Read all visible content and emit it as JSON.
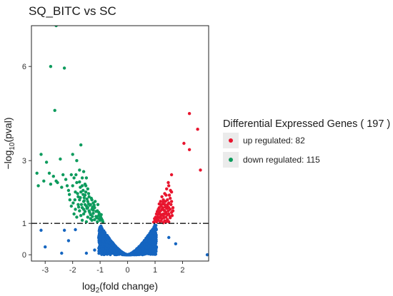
{
  "chart_data": {
    "type": "scatter",
    "title": "SQ_BITC vs SC",
    "xlabel": "log2(fold change)",
    "ylabel": "-log10(pval)",
    "xlim": [
      -3.5,
      2.95
    ],
    "ylim": [
      -0.2,
      7.3
    ],
    "xticks": [
      -3,
      -2,
      -1,
      0,
      1,
      2
    ],
    "yticks": [
      0,
      1,
      3,
      6
    ],
    "threshold_line": {
      "y": 1.0,
      "style": "dashdot"
    },
    "grid": false,
    "legend_position": "right",
    "legend_title": "Differential Expressed Genes ( 197 )",
    "series": [
      {
        "name": "up regulated: 82",
        "color": "#e8152e",
        "points": [
          [
            2.25,
            4.5
          ],
          [
            2.55,
            4.0
          ],
          [
            2.05,
            3.55
          ],
          [
            2.25,
            3.35
          ],
          [
            2.65,
            2.7
          ],
          [
            1.6,
            2.55
          ],
          [
            1.5,
            2.2
          ],
          [
            1.6,
            2.0
          ],
          [
            1.4,
            1.9
          ],
          [
            1.3,
            1.75
          ],
          [
            1.5,
            1.65
          ],
          [
            1.2,
            1.6
          ],
          [
            1.45,
            1.55
          ],
          [
            1.55,
            1.45
          ],
          [
            1.6,
            1.35
          ],
          [
            1.35,
            1.4
          ],
          [
            1.25,
            1.45
          ],
          [
            1.15,
            1.35
          ],
          [
            1.1,
            1.28
          ],
          [
            1.05,
            1.18
          ],
          [
            1.12,
            1.1
          ],
          [
            1.2,
            1.22
          ],
          [
            1.3,
            1.3
          ],
          [
            1.4,
            1.2
          ],
          [
            1.5,
            1.3
          ],
          [
            1.45,
            1.12
          ],
          [
            1.35,
            1.08
          ],
          [
            1.25,
            1.15
          ],
          [
            1.18,
            1.05
          ],
          [
            1.3,
            1.02
          ],
          [
            1.5,
            1.05
          ],
          [
            1.55,
            1.18
          ],
          [
            1.4,
            1.35
          ],
          [
            1.0,
            1.1
          ],
          [
            0.95,
            1.04
          ],
          [
            1.05,
            1.3
          ],
          [
            1.15,
            1.5
          ],
          [
            1.35,
            1.6
          ],
          [
            1.45,
            1.75
          ],
          [
            1.25,
            1.85
          ],
          [
            1.65,
            1.5
          ],
          [
            1.3,
            1.25
          ],
          [
            1.2,
            1.4
          ],
          [
            1.1,
            1.2
          ],
          [
            1.05,
            1.05
          ],
          [
            1.42,
            1.48
          ],
          [
            1.22,
            1.08
          ],
          [
            1.32,
            1.18
          ],
          [
            1.58,
            1.6
          ],
          [
            1.62,
            1.25
          ],
          [
            1.48,
            1.4
          ],
          [
            1.38,
            1.52
          ],
          [
            1.28,
            1.62
          ],
          [
            1.18,
            1.3
          ],
          [
            1.08,
            1.12
          ],
          [
            1.52,
            1.9
          ],
          [
            1.42,
            2.1
          ],
          [
            1.35,
            1.95
          ],
          [
            1.55,
            1.8
          ],
          [
            1.48,
            2.3
          ],
          [
            1.45,
            1.28
          ],
          [
            1.12,
            1.45
          ],
          [
            1.02,
            1.2
          ],
          [
            0.98,
            1.15
          ],
          [
            1.2,
            1.7
          ],
          [
            1.6,
            1.7
          ],
          [
            1.65,
            1.4
          ],
          [
            1.28,
            1.5
          ],
          [
            1.35,
            1.3
          ],
          [
            1.38,
            1.7
          ],
          [
            1.18,
            1.18
          ],
          [
            1.25,
            1.28
          ],
          [
            1.22,
            1.55
          ],
          [
            1.5,
            1.5
          ],
          [
            1.32,
            1.42
          ],
          [
            1.46,
            1.6
          ],
          [
            1.4,
            1.05
          ],
          [
            1.54,
            1.22
          ],
          [
            1.15,
            1.62
          ],
          [
            1.08,
            1.38
          ],
          [
            1.3,
            1.68
          ],
          [
            1.56,
            2.05
          ]
        ]
      },
      {
        "name": "down regulated: 115",
        "color": "#0d9b5d",
        "points": [
          [
            -2.6,
            7.3
          ],
          [
            -2.8,
            6.0
          ],
          [
            -2.3,
            5.95
          ],
          [
            -2.65,
            4.6
          ],
          [
            -1.7,
            3.5
          ],
          [
            -2.0,
            3.2
          ],
          [
            -2.45,
            3.05
          ],
          [
            -3.15,
            3.2
          ],
          [
            -2.95,
            2.95
          ],
          [
            -1.85,
            3.0
          ],
          [
            -3.3,
            2.6
          ],
          [
            -2.7,
            2.5
          ],
          [
            -2.35,
            2.55
          ],
          [
            -2.05,
            2.55
          ],
          [
            -1.95,
            2.45
          ],
          [
            -1.75,
            2.7
          ],
          [
            -1.6,
            2.65
          ],
          [
            -3.05,
            2.35
          ],
          [
            -2.8,
            2.25
          ],
          [
            -2.55,
            2.3
          ],
          [
            -3.25,
            2.2
          ],
          [
            -2.4,
            2.15
          ],
          [
            -2.2,
            2.2
          ],
          [
            -2.15,
            2.05
          ],
          [
            -2.0,
            2.2
          ],
          [
            -1.85,
            2.3
          ],
          [
            -1.5,
            2.45
          ],
          [
            -1.55,
            2.25
          ],
          [
            -1.65,
            2.2
          ],
          [
            -1.45,
            2.1
          ],
          [
            -1.7,
            2.0
          ],
          [
            -1.9,
            2.0
          ],
          [
            -1.55,
            1.9
          ],
          [
            -1.4,
            1.85
          ],
          [
            -1.3,
            1.75
          ],
          [
            -1.6,
            1.7
          ],
          [
            -1.45,
            1.7
          ],
          [
            -1.75,
            1.75
          ],
          [
            -1.25,
            1.65
          ],
          [
            -1.35,
            1.6
          ],
          [
            -1.5,
            1.55
          ],
          [
            -1.2,
            1.5
          ],
          [
            -1.65,
            1.5
          ],
          [
            -1.3,
            1.45
          ],
          [
            -1.8,
            1.6
          ],
          [
            -1.1,
            1.4
          ],
          [
            -1.4,
            1.4
          ],
          [
            -1.55,
            1.38
          ],
          [
            -1.25,
            1.32
          ],
          [
            -1.05,
            1.25
          ],
          [
            -1.15,
            1.22
          ],
          [
            -1.35,
            1.28
          ],
          [
            -0.95,
            1.15
          ],
          [
            -1.0,
            1.1
          ],
          [
            -1.2,
            1.12
          ],
          [
            -1.45,
            1.2
          ],
          [
            -1.6,
            1.3
          ],
          [
            -1.75,
            1.4
          ],
          [
            -1.9,
            1.45
          ],
          [
            -1.95,
            1.3
          ],
          [
            -2.05,
            1.55
          ],
          [
            -1.85,
            1.2
          ],
          [
            -2.1,
            1.75
          ],
          [
            -1.7,
            1.25
          ],
          [
            -1.3,
            1.1
          ],
          [
            -1.1,
            1.05
          ],
          [
            -0.9,
            1.05
          ],
          [
            -1.05,
            1.35
          ],
          [
            -1.5,
            1.05
          ],
          [
            -1.65,
            1.1
          ],
          [
            -1.35,
            1.15
          ],
          [
            -1.22,
            1.58
          ],
          [
            -1.42,
            1.62
          ],
          [
            -1.58,
            1.82
          ],
          [
            -1.68,
            1.6
          ],
          [
            -1.8,
            1.85
          ],
          [
            -1.48,
            1.48
          ],
          [
            -1.12,
            1.18
          ],
          [
            -1.28,
            1.22
          ],
          [
            -0.98,
            1.2
          ],
          [
            -1.38,
            1.35
          ],
          [
            -1.55,
            1.6
          ],
          [
            -1.62,
            2.05
          ],
          [
            -1.52,
            2.0
          ],
          [
            -1.72,
            2.15
          ],
          [
            -1.82,
            1.95
          ],
          [
            -1.88,
            2.55
          ],
          [
            -2.25,
            2.4
          ],
          [
            -2.6,
            2.35
          ],
          [
            -2.85,
            2.6
          ],
          [
            -1.42,
            1.95
          ],
          [
            -1.32,
            1.8
          ],
          [
            -1.18,
            1.7
          ],
          [
            -1.08,
            1.6
          ],
          [
            -1.02,
            1.3
          ],
          [
            -0.92,
            1.1
          ],
          [
            -1.25,
            1.42
          ],
          [
            -1.45,
            1.5
          ],
          [
            -1.6,
            1.45
          ],
          [
            -1.78,
            1.52
          ],
          [
            -1.98,
            1.65
          ],
          [
            -2.12,
            1.92
          ],
          [
            -1.92,
            1.75
          ],
          [
            -1.72,
            1.82
          ],
          [
            -1.58,
            1.72
          ],
          [
            -1.48,
            1.78
          ],
          [
            -1.38,
            1.58
          ],
          [
            -1.28,
            1.52
          ],
          [
            -1.15,
            1.38
          ],
          [
            -1.05,
            1.15
          ],
          [
            -0.96,
            1.28
          ],
          [
            -1.62,
            1.92
          ],
          [
            -1.75,
            2.32
          ],
          [
            -1.52,
            2.2
          ],
          [
            -1.65,
            2.45
          ]
        ]
      }
    ]
  },
  "legend": {
    "title": "Differential Expressed Genes ( 197 )",
    "items": [
      {
        "label": "up regulated: 82",
        "color": "#e8152e"
      },
      {
        "label": "down regulated: 115",
        "color": "#0d9b5d"
      }
    ]
  },
  "colors": {
    "not_significant": "#1565c0"
  }
}
